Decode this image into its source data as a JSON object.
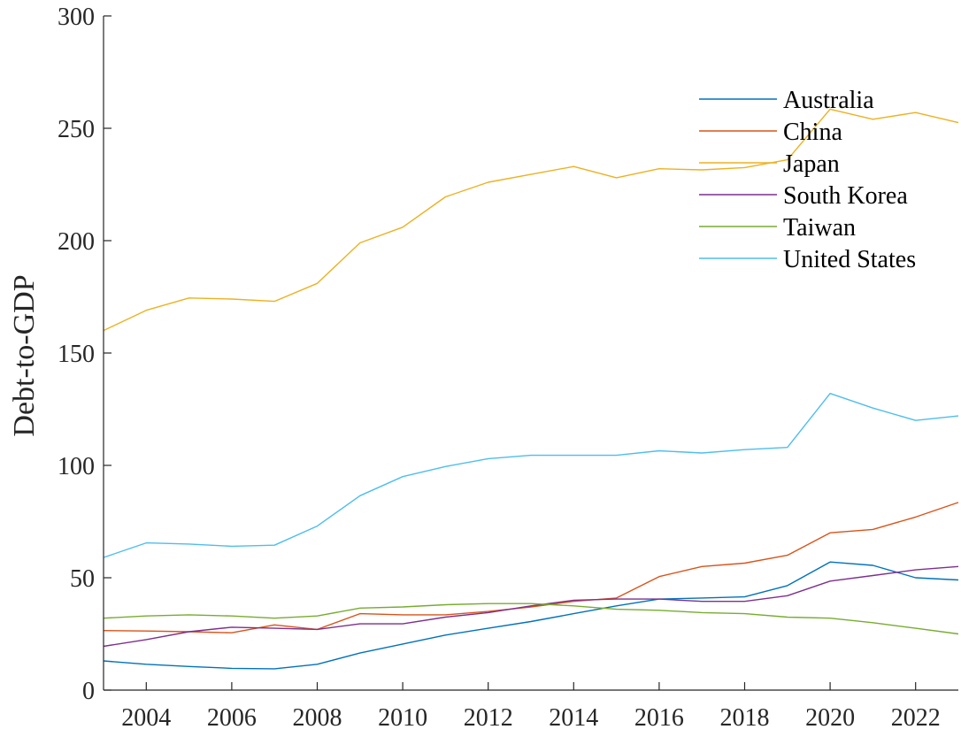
{
  "chart_data": {
    "type": "line",
    "title": "",
    "xlabel": "",
    "ylabel": "Debt-to-GDP",
    "xlim": [
      2003,
      2023
    ],
    "ylim": [
      0,
      300
    ],
    "xticks": [
      2004,
      2006,
      2008,
      2010,
      2012,
      2014,
      2016,
      2018,
      2020,
      2022
    ],
    "yticks": [
      0,
      50,
      100,
      150,
      200,
      250,
      300
    ],
    "grid": false,
    "legend_position": "top-right",
    "x": [
      2003,
      2004,
      2005,
      2006,
      2007,
      2008,
      2009,
      2010,
      2011,
      2012,
      2013,
      2014,
      2015,
      2016,
      2017,
      2018,
      2019,
      2020,
      2021,
      2022,
      2023
    ],
    "series": [
      {
        "name": "Australia",
        "color": "#0072BD",
        "values": [
          13,
          11.5,
          10.5,
          9.7,
          9.5,
          11.5,
          16.5,
          20.5,
          24.5,
          27.5,
          30.5,
          34,
          37.5,
          40.5,
          41,
          41.5,
          46.5,
          57,
          55.5,
          50,
          49
        ]
      },
      {
        "name": "China",
        "color": "#D95319",
        "values": [
          26.5,
          26.3,
          26,
          25.5,
          29,
          27,
          34,
          33.5,
          33.5,
          35,
          37,
          39.5,
          41,
          50.5,
          55,
          56.5,
          60,
          70,
          71.5,
          77,
          83.5
        ]
      },
      {
        "name": "Japan",
        "color": "#EDB120",
        "values": [
          160,
          169,
          174.5,
          174,
          173,
          181,
          199,
          206,
          219.5,
          226,
          229.5,
          233,
          228,
          232,
          231.5,
          232.5,
          236,
          258.5,
          254,
          257,
          252.5
        ]
      },
      {
        "name": "South Korea",
        "color": "#7E2F8E",
        "values": [
          19.5,
          22.5,
          26,
          28,
          27.5,
          27,
          29.5,
          29.5,
          32.5,
          34.5,
          37.5,
          40,
          40.5,
          40.5,
          39.5,
          39.5,
          42,
          48.5,
          51,
          53.5,
          55
        ]
      },
      {
        "name": "Taiwan",
        "color": "#77AC30",
        "values": [
          32,
          33,
          33.5,
          33,
          32,
          33,
          36.5,
          37,
          38,
          38.5,
          38.5,
          37.5,
          36,
          35.5,
          34.5,
          34,
          32.5,
          32,
          30,
          27.5,
          25
        ]
      },
      {
        "name": "United States",
        "color": "#4DBEEE",
        "values": [
          59,
          65.5,
          65,
          64,
          64.5,
          73,
          86.5,
          95,
          99.5,
          103,
          104.5,
          104.5,
          104.5,
          106.5,
          105.5,
          107,
          108,
          132,
          125.5,
          120,
          122
        ]
      }
    ]
  }
}
